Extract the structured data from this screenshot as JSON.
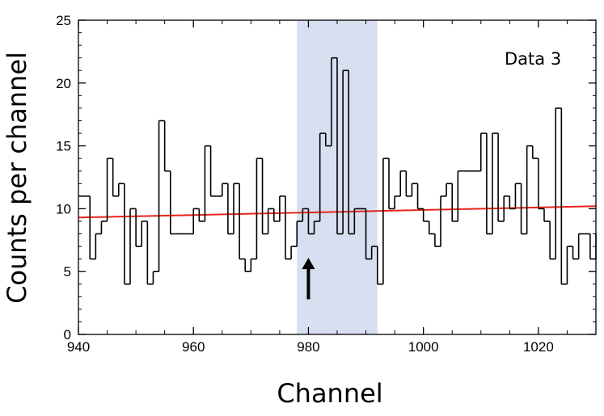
{
  "chart_data": {
    "type": "line",
    "step": true,
    "xlabel": "Channel",
    "ylabel": "Counts per channel",
    "xlim": [
      940,
      1030
    ],
    "ylim": [
      0,
      25
    ],
    "xticks": [
      940,
      960,
      980,
      1000,
      1020
    ],
    "yticks": [
      0,
      5,
      10,
      15,
      20,
      25
    ],
    "series": [
      {
        "style": "histogram-step",
        "color": "#000000",
        "x": [
          940,
          941,
          942,
          943,
          944,
          945,
          946,
          947,
          948,
          949,
          950,
          951,
          952,
          953,
          954,
          955,
          956,
          957,
          958,
          959,
          960,
          961,
          962,
          963,
          964,
          965,
          966,
          967,
          968,
          969,
          970,
          971,
          972,
          973,
          974,
          975,
          976,
          977,
          978,
          979,
          980,
          981,
          982,
          983,
          984,
          985,
          986,
          987,
          988,
          989,
          990,
          991,
          992,
          993,
          994,
          995,
          996,
          997,
          998,
          999,
          1000,
          1001,
          1002,
          1003,
          1004,
          1005,
          1006,
          1007,
          1008,
          1009,
          1010,
          1011,
          1012,
          1013,
          1014,
          1015,
          1016,
          1017,
          1018,
          1019,
          1020,
          1021,
          1022,
          1023,
          1024,
          1025,
          1026,
          1027,
          1028,
          1029
        ],
        "values": [
          11,
          11,
          6,
          8,
          9,
          14,
          11,
          12,
          4,
          10,
          7,
          9,
          4,
          5,
          17,
          13,
          8,
          8,
          8,
          8,
          10,
          9,
          15,
          11,
          11,
          12,
          8,
          12,
          6,
          5,
          6,
          14,
          8,
          10,
          9,
          11,
          6,
          7,
          9,
          10,
          8,
          9,
          16,
          15,
          22,
          8,
          21,
          8,
          10,
          10,
          6,
          7,
          4,
          14,
          10,
          11,
          13,
          11,
          12,
          10,
          9,
          8,
          7,
          11,
          12,
          9,
          13,
          13,
          13,
          13,
          16,
          8,
          16,
          9,
          11,
          10,
          12,
          8,
          15,
          14,
          10,
          9,
          6,
          18,
          4,
          7,
          6,
          8,
          8,
          6
        ]
      },
      {
        "style": "fit-line",
        "color": "#e8241a",
        "x": [
          940,
          1030
        ],
        "values": [
          9.3,
          10.2
        ]
      }
    ],
    "shaded_region": {
      "x": [
        978,
        992
      ],
      "color": "#d7dff0"
    },
    "annotations": {
      "label": "Data 3",
      "arrow_x": 980,
      "arrow_y": [
        2.8,
        6.1
      ]
    }
  }
}
